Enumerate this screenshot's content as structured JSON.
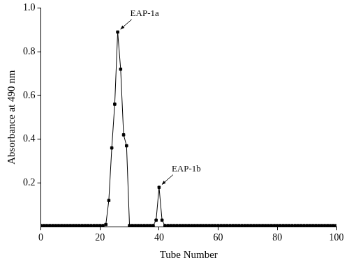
{
  "chart_data": {
    "type": "line",
    "x_label": "Tube Number",
    "y_label": "Absorbance at 490 nm",
    "x": [
      0,
      1,
      2,
      3,
      4,
      5,
      6,
      7,
      8,
      9,
      10,
      11,
      12,
      13,
      14,
      15,
      16,
      17,
      18,
      19,
      20,
      21,
      22,
      23,
      24,
      25,
      26,
      27,
      28,
      29,
      30,
      31,
      32,
      33,
      34,
      35,
      36,
      37,
      38,
      39,
      40,
      41,
      42,
      43,
      44,
      45,
      46,
      47,
      48,
      49,
      50,
      51,
      52,
      53,
      54,
      55,
      56,
      57,
      58,
      59,
      60,
      61,
      62,
      63,
      64,
      65,
      66,
      67,
      68,
      69,
      70,
      71,
      72,
      73,
      74,
      75,
      76,
      77,
      78,
      79,
      80,
      81,
      82,
      83,
      84,
      85,
      86,
      87,
      88,
      89,
      90,
      91,
      92,
      93,
      94,
      95,
      96,
      97,
      98,
      99,
      100
    ],
    "series": [
      {
        "color": "#000000",
        "marker": "square",
        "line_style": "solid",
        "values": [
          0.005,
          0.005,
          0.005,
          0.005,
          0.005,
          0.005,
          0.005,
          0.005,
          0.005,
          0.005,
          0.005,
          0.005,
          0.005,
          0.005,
          0.005,
          0.005,
          0.005,
          0.005,
          0.005,
          0.005,
          0.005,
          0.005,
          0.01,
          0.12,
          0.36,
          0.56,
          0.89,
          0.72,
          0.42,
          0.37,
          0.005,
          0.005,
          0.005,
          0.005,
          0.005,
          0.005,
          0.005,
          0.005,
          0.005,
          0.03,
          0.18,
          0.03,
          0.005,
          0.005,
          0.005,
          0.005,
          0.005,
          0.005,
          0.005,
          0.005,
          0.005,
          0.005,
          0.005,
          0.005,
          0.005,
          0.005,
          0.005,
          0.005,
          0.005,
          0.005,
          0.005,
          0.005,
          0.005,
          0.005,
          0.005,
          0.005,
          0.005,
          0.005,
          0.005,
          0.005,
          0.005,
          0.005,
          0.005,
          0.005,
          0.005,
          0.005,
          0.005,
          0.005,
          0.005,
          0.005,
          0.005,
          0.005,
          0.005,
          0.005,
          0.005,
          0.005,
          0.005,
          0.005,
          0.005,
          0.005,
          0.005,
          0.005,
          0.005,
          0.005,
          0.005,
          0.005,
          0.005,
          0.005,
          0.005,
          0.005,
          0.005
        ]
      }
    ],
    "xlim": [
      0,
      100
    ],
    "xticks": [
      0,
      20,
      40,
      60,
      80,
      100
    ],
    "ylim": [
      0,
      1
    ],
    "yticks": [
      0.2,
      0.4,
      0.6,
      0.8,
      {
        "value": 1,
        "label": "1.0"
      }
    ],
    "grid": false,
    "annotations": [
      {
        "text": "EAP-1a",
        "x": 26,
        "y": 0.89
      },
      {
        "text": "EAP-1b",
        "x": 40,
        "y": 0.18
      }
    ]
  }
}
